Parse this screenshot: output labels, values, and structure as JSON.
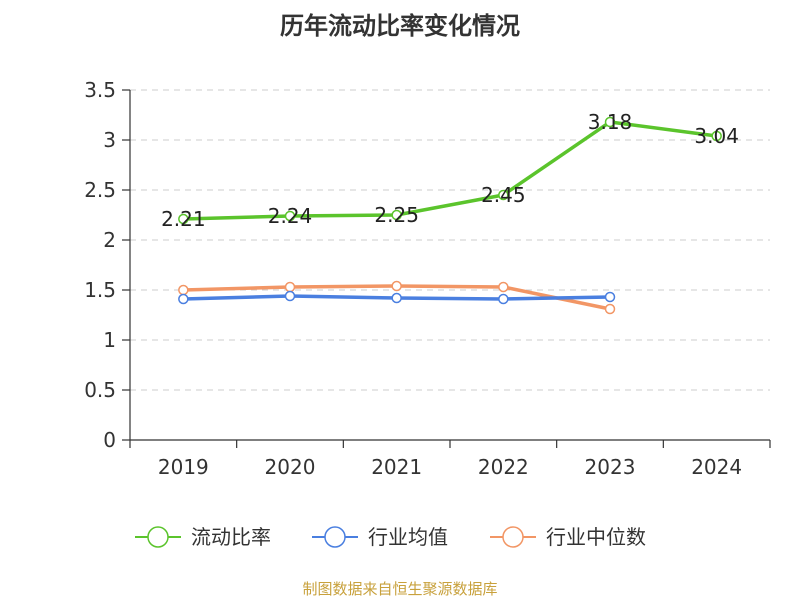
{
  "chart_data": {
    "type": "line",
    "title": "历年流动比率变化情况",
    "categories": [
      "2019",
      "2020",
      "2021",
      "2022",
      "2023",
      "2024"
    ],
    "ylim": [
      0,
      3.5
    ],
    "yticks": [
      "0",
      "0.5",
      "1",
      "1.5",
      "2",
      "2.5",
      "3",
      "3.5"
    ],
    "grid": true,
    "legend_position": "bottom",
    "series": [
      {
        "name": "流动比率",
        "color": "#5bc42c",
        "values": [
          2.21,
          2.24,
          2.25,
          2.45,
          3.18,
          3.04
        ],
        "labels": [
          "2.21",
          "2.24",
          "2.25",
          "2.45",
          "3.18",
          "3.04"
        ]
      },
      {
        "name": "行业均值",
        "color": "#4a7fe0",
        "values": [
          1.41,
          1.44,
          1.42,
          1.41,
          1.43,
          null
        ],
        "labels": []
      },
      {
        "name": "行业中位数",
        "color": "#f29665",
        "values": [
          1.5,
          1.53,
          1.54,
          1.53,
          1.31,
          null
        ],
        "labels": []
      }
    ],
    "source": "制图数据来自恒生聚源数据库"
  }
}
